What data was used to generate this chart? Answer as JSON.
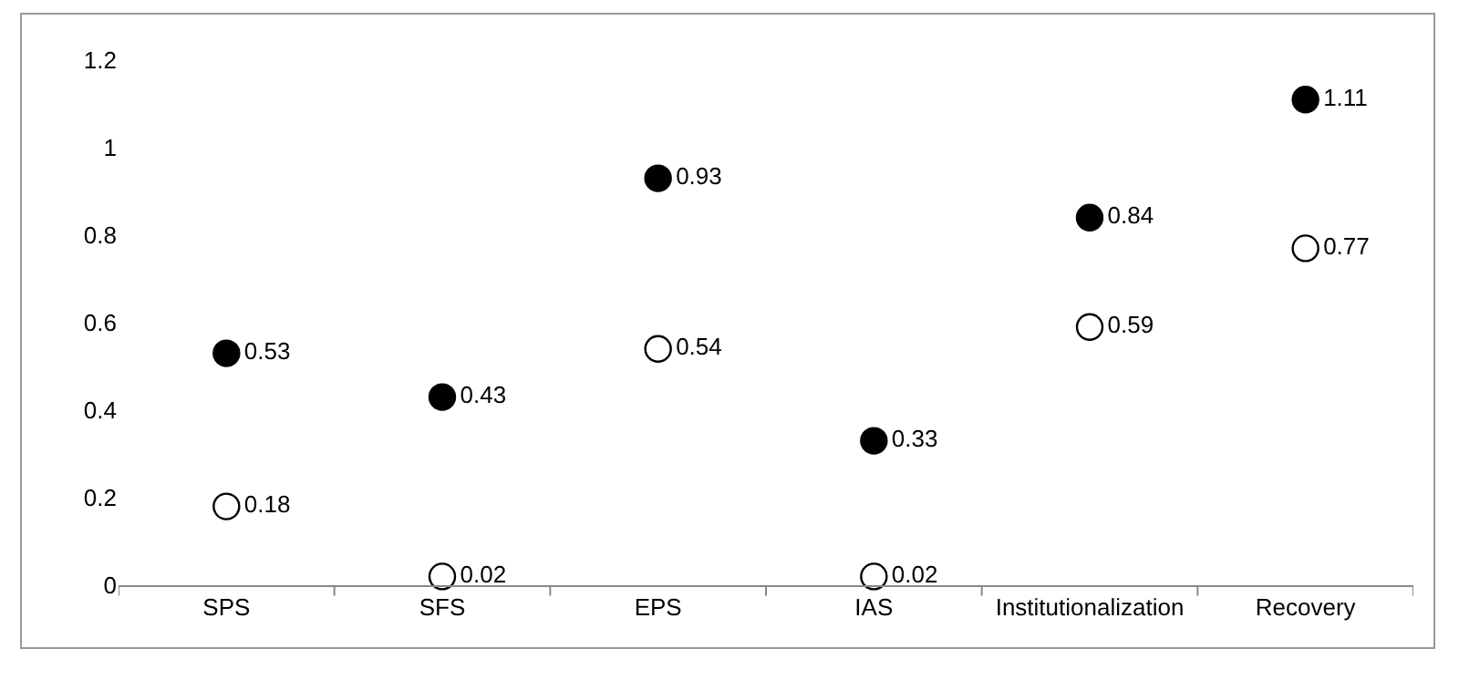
{
  "chart_data": {
    "type": "scatter",
    "categories": [
      "SPS",
      "SFS",
      "EPS",
      "IAS",
      "Institutionalization",
      "Recovery"
    ],
    "series": [
      {
        "color": "#000000",
        "values": [
          0.53,
          0.43,
          0.93,
          0.33,
          0.84,
          1.11
        ]
      },
      {
        "color": "#ffffff",
        "values": [
          0.18,
          0.02,
          0.54,
          0.02,
          0.59,
          0.77
        ]
      }
    ],
    "ylim": [
      0,
      1.2
    ],
    "yticks": [
      0,
      0.2,
      0.4,
      0.6,
      0.8,
      1,
      1.2
    ],
    "grid": false,
    "marker": "circle",
    "data_labels": true
  }
}
